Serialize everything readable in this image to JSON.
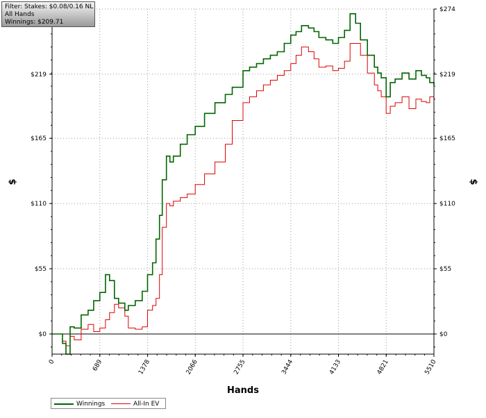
{
  "info": {
    "filter": "Filter: Stakes: $0.08/0.16 NL",
    "hands": "All Hands",
    "winnings": "Winnings: $209.71"
  },
  "legend": {
    "winnings": "Winnings",
    "allin": "All-In EV"
  },
  "chart_data": {
    "type": "line",
    "xlabel": "Hands",
    "ylabel": "$",
    "xlim": [
      0,
      5510
    ],
    "ylim": [
      -17,
      274
    ],
    "x_ticks": [
      0,
      689,
      1378,
      2066,
      2755,
      3444,
      4133,
      4821,
      5510
    ],
    "y_ticks": [
      0,
      55,
      110,
      165,
      219,
      274
    ],
    "y_tick_labels": [
      "$0",
      "$55",
      "$110",
      "$165",
      "$219",
      "$274"
    ],
    "grid": true,
    "legend_position": "bottom-left",
    "colors": {
      "winnings": "#006400",
      "allin": "#dd0000"
    },
    "series": [
      {
        "name": "Winnings",
        "x": [
          0,
          150,
          200,
          260,
          320,
          420,
          520,
          600,
          689,
          770,
          830,
          900,
          960,
          1050,
          1100,
          1200,
          1300,
          1378,
          1450,
          1500,
          1550,
          1590,
          1650,
          1700,
          1750,
          1850,
          1950,
          2066,
          2200,
          2350,
          2500,
          2600,
          2755,
          2850,
          2950,
          3050,
          3150,
          3250,
          3350,
          3444,
          3520,
          3600,
          3700,
          3780,
          3850,
          3950,
          4050,
          4133,
          4220,
          4300,
          4380,
          4450,
          4550,
          4650,
          4700,
          4750,
          4821,
          4880,
          4950,
          5050,
          5150,
          5250,
          5330,
          5400,
          5450,
          5510
        ],
        "values": [
          0,
          -8,
          -17,
          6,
          5,
          16,
          20,
          28,
          35,
          50,
          45,
          30,
          26,
          20,
          24,
          28,
          36,
          50,
          60,
          80,
          100,
          130,
          150,
          145,
          150,
          160,
          168,
          175,
          186,
          195,
          202,
          208,
          222,
          225,
          228,
          232,
          235,
          238,
          245,
          252,
          255,
          260,
          258,
          255,
          250,
          248,
          245,
          250,
          256,
          270,
          262,
          248,
          235,
          225,
          220,
          216,
          200,
          212,
          215,
          220,
          215,
          222,
          218,
          216,
          212,
          210
        ]
      },
      {
        "name": "All-In EV",
        "x": [
          0,
          150,
          200,
          260,
          320,
          420,
          520,
          600,
          689,
          770,
          830,
          900,
          960,
          1050,
          1100,
          1200,
          1300,
          1378,
          1450,
          1500,
          1550,
          1590,
          1650,
          1700,
          1750,
          1850,
          1950,
          2066,
          2200,
          2350,
          2500,
          2600,
          2755,
          2850,
          2950,
          3050,
          3150,
          3250,
          3350,
          3444,
          3520,
          3600,
          3700,
          3780,
          3850,
          3950,
          4050,
          4133,
          4220,
          4300,
          4380,
          4450,
          4550,
          4650,
          4700,
          4750,
          4821,
          4880,
          4950,
          5050,
          5150,
          5250,
          5330,
          5400,
          5450,
          5510
        ],
        "values": [
          0,
          -6,
          -10,
          -2,
          -5,
          4,
          8,
          2,
          5,
          12,
          18,
          25,
          22,
          15,
          5,
          4,
          6,
          20,
          24,
          30,
          50,
          90,
          110,
          108,
          112,
          115,
          118,
          126,
          135,
          145,
          160,
          180,
          195,
          200,
          205,
          210,
          214,
          218,
          222,
          228,
          235,
          242,
          238,
          232,
          225,
          226,
          222,
          224,
          230,
          245,
          245,
          235,
          220,
          210,
          205,
          200,
          186,
          192,
          195,
          200,
          190,
          198,
          196,
          195,
          200,
          198
        ]
      }
    ]
  }
}
